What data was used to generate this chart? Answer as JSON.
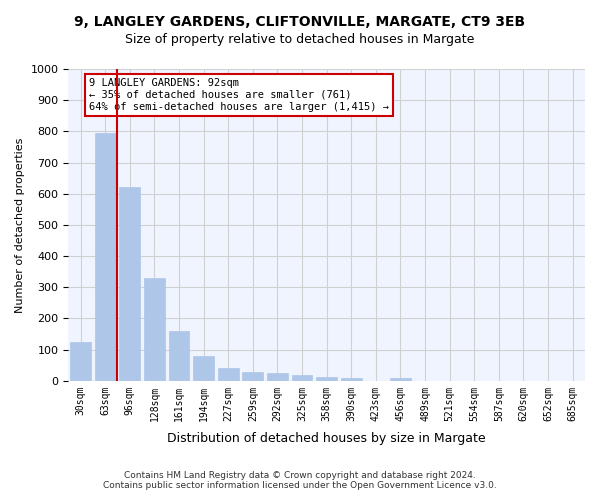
{
  "title_line1": "9, LANGLEY GARDENS, CLIFTONVILLE, MARGATE, CT9 3EB",
  "title_line2": "Size of property relative to detached houses in Margate",
  "xlabel": "Distribution of detached houses by size in Margate",
  "ylabel": "Number of detached properties",
  "categories": [
    "30sqm",
    "63sqm",
    "96sqm",
    "128sqm",
    "161sqm",
    "194sqm",
    "227sqm",
    "259sqm",
    "292sqm",
    "325sqm",
    "358sqm",
    "390sqm",
    "423sqm",
    "456sqm",
    "489sqm",
    "521sqm",
    "554sqm",
    "587sqm",
    "620sqm",
    "652sqm",
    "685sqm"
  ],
  "values": [
    125,
    795,
    620,
    330,
    160,
    80,
    40,
    27,
    25,
    17,
    12,
    8,
    0,
    8,
    0,
    0,
    0,
    0,
    0,
    0,
    0
  ],
  "bar_color": "#aec6e8",
  "bar_edge_color": "#aec6e8",
  "grid_color": "#d0d0d0",
  "background_color": "#f0f4ff",
  "vline_x": 2,
  "vline_color": "#cc0000",
  "annotation_text": "9 LANGLEY GARDENS: 92sqm\n← 35% of detached houses are smaller (761)\n64% of semi-detached houses are larger (1,415) →",
  "annotation_box_color": "#cc0000",
  "ylim": [
    0,
    1000
  ],
  "yticks": [
    0,
    100,
    200,
    300,
    400,
    500,
    600,
    700,
    800,
    900,
    1000
  ],
  "footer_line1": "Contains HM Land Registry data © Crown copyright and database right 2024.",
  "footer_line2": "Contains public sector information licensed under the Open Government Licence v3.0."
}
